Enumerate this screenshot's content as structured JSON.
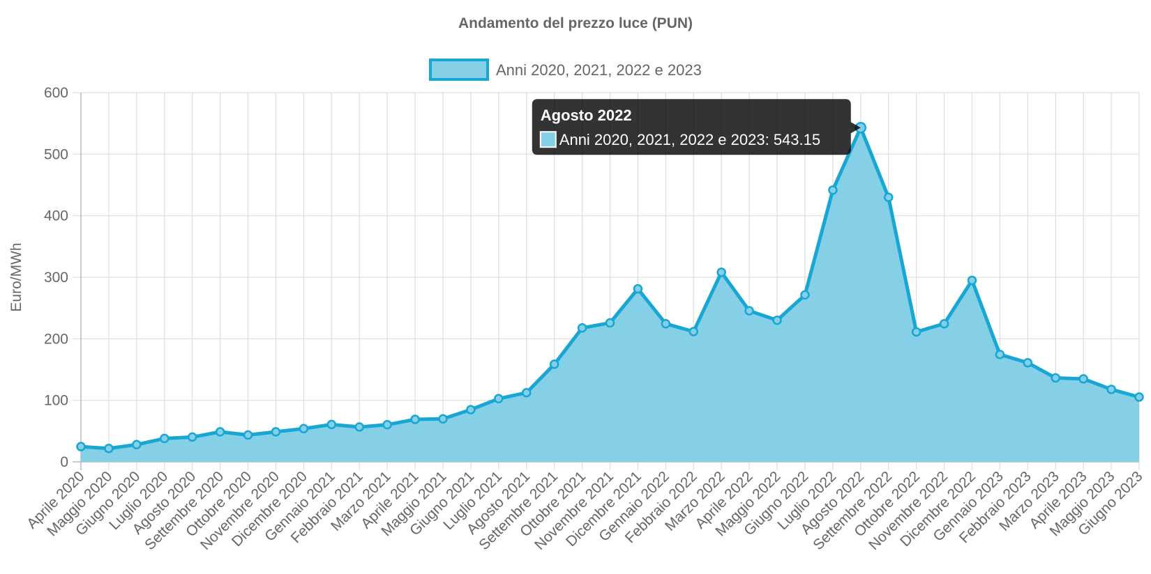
{
  "chart_data": {
    "type": "area",
    "title": "Andamento del prezzo luce (PUN)",
    "ylabel": "Euro/MWh",
    "xlabel": "",
    "ylim": [
      0,
      600
    ],
    "yticks": [
      "0",
      "100",
      "200",
      "300",
      "400",
      "500",
      "600"
    ],
    "grid": true,
    "legend_position": "top",
    "categories": [
      "Aprile 2020",
      "Maggio 2020",
      "Giugno 2020",
      "Luglio 2020",
      "Agosto 2020",
      "Settembre 2020",
      "Ottobre 2020",
      "Novembre 2020",
      "Dicembre 2020",
      "Gennaio 2021",
      "Febbraio 2021",
      "Marzo 2021",
      "Aprile 2021",
      "Maggio 2021",
      "Giugno 2021",
      "Luglio 2021",
      "Agosto 2021",
      "Settembre 2021",
      "Ottobre 2021",
      "Novembre 2021",
      "Dicembre 2021",
      "Gennaio 2022",
      "Febbraio 2022",
      "Marzo 2022",
      "Aprile 2022",
      "Maggio 2022",
      "Giugno 2022",
      "Luglio 2022",
      "Agosto 2022",
      "Settembre 2022",
      "Ottobre 2022",
      "Novembre 2022",
      "Dicembre 2022",
      "Gennaio 2023",
      "Febbraio 2023",
      "Marzo 2023",
      "Aprile 2023",
      "Maggio 2023",
      "Giugno 2023"
    ],
    "series": [
      {
        "name": "Anni 2020, 2021, 2022 e 2023",
        "values": [
          24.8,
          21.8,
          28.0,
          38.0,
          40.3,
          48.8,
          43.6,
          48.8,
          54.0,
          60.7,
          56.6,
          60.4,
          69.0,
          69.9,
          84.8,
          102.7,
          112.4,
          158.6,
          217.6,
          225.9,
          281.2,
          224.5,
          211.7,
          308.1,
          245.5,
          230.1,
          271.3,
          441.7,
          543.15,
          429.9,
          211.2,
          224.5,
          294.9,
          174.5,
          161.1,
          136.4,
          134.9,
          117.8,
          105.3
        ],
        "line_color": "#18a6d3",
        "fill_color": "#85d0e7"
      }
    ],
    "tooltip": {
      "title": "Agosto 2022",
      "label": "Anni 2020, 2021, 2022 e 2023: 543.15",
      "index": 28
    }
  }
}
